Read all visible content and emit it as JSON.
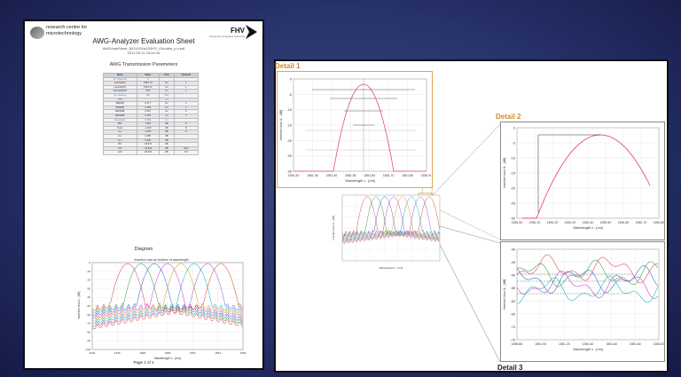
{
  "sheet": {
    "logo_line1": "research centre for",
    "logo_line2": "microtechnology",
    "fhv_logo": "FHV",
    "fhv_sub": "University of Applied Sciences",
    "title": "AWG-Analyzer Evaluation Sheet",
    "subtitle1": "AWGAnalSheet_80110GHz100HS_Gdouble_p-v.pdf",
    "subtitle2": "2011-09-11 15:44:16",
    "params_title": "AWG Transmission Parameters",
    "headers": [
      "Name",
      "Value",
      "Unit",
      "Channel"
    ],
    "rows": [
      [
        "Nr. Channels",
        "8",
        "",
        ""
      ],
      [
        "LambdaCh",
        "1551.70",
        "nm",
        "1"
      ],
      [
        "LambdaITU",
        "1551.72",
        "nm",
        "1"
      ],
      [
        "ΔLambdaITU",
        "0.05",
        "nm",
        "1"
      ],
      [
        "Ch. Spacing",
        "100",
        "GHz",
        ""
      ],
      [
        "FSR",
        "",
        "nm",
        ""
      ],
      [
        "BW1dB",
        "0.177",
        "nm",
        "4"
      ],
      [
        "BW3dB",
        "0.193",
        "nm",
        "1"
      ],
      [
        "BW20dB",
        "0.267",
        "nm",
        "3"
      ],
      [
        "BW30dB",
        "0.763",
        "nm",
        "3"
      ],
      [
        "Resolution",
        "0.006",
        "nm",
        ""
      ],
      [
        "PDL",
        "1.094",
        "dB",
        "8"
      ],
      [
        "ILmin",
        "-1.220",
        "dB",
        "8"
      ],
      [
        "ILu",
        "-3.824",
        "dB",
        "8"
      ],
      [
        "ILx",
        "0.486",
        "dB",
        "-"
      ],
      [
        "IL-u",
        "0.026",
        "dB",
        "-"
      ],
      [
        "BX",
        "-34.671",
        "dB",
        "-"
      ],
      [
        "NX",
        "-32.824",
        "dB",
        "NxN"
      ],
      [
        "nAX",
        "-36.612",
        "dB",
        "Tot"
      ]
    ],
    "highlight_rows": [
      0,
      4,
      5,
      10
    ],
    "diagram_title": "Diagram",
    "chart_title": "Insertion loss as function of wavelength",
    "chart_xlabel": "Wavelength λ - [nm]",
    "chart_ylabel": "Insertion loss IL - [dB]",
    "chart_yticks": [
      "0",
      "-10",
      "-20",
      "-30",
      "-40",
      "-50",
      "-60",
      "-70",
      "-80",
      "-90",
      "-100"
    ],
    "chart_xticks": [
      "1544",
      "1546",
      "1548",
      "1550",
      "1552",
      "1554",
      "1556"
    ],
    "page_label": "Page 1 of 1"
  },
  "panel": {
    "detail1_label": "Detail 1",
    "detail2_label": "Detail 2",
    "detail3_label": "Detail 3",
    "detail1": {
      "xticks": [
        "1551.20",
        "1551.30",
        "1551.40",
        "1551.50",
        "1551.60",
        "1551.70",
        "1551.80",
        "1551.90"
      ],
      "yticks": [
        "0",
        "-5",
        "-10",
        "-15",
        "-20",
        "-25",
        "-30"
      ],
      "xlabel": "Wavelength λ - [nm]",
      "ylabel": "Insertion loss IL - [dB]"
    },
    "detail2": {
      "xticks": [
        "1551.00",
        "1551.10",
        "1551.20",
        "1551.30",
        "1551.40",
        "1551.50",
        "1551.60",
        "1551.70",
        "1551.80"
      ],
      "yticks": [
        "0",
        "-5",
        "-10",
        "-15",
        "-20",
        "-25",
        "-30"
      ],
      "xlabel": "Wavelength λ - [nm]",
      "ylabel": "Insertion loss IL - [dB]"
    },
    "detail3": {
      "xticks": [
        "1550.80",
        "1551.00",
        "1551.20",
        "1551.40",
        "1551.60",
        "1551.80",
        "1552.00"
      ],
      "yticks": [
        "-40",
        "-45",
        "-50",
        "-55",
        "-60",
        "-65",
        "-70",
        "-75"
      ],
      "xlabel": "Wavelength λ - [nm]",
      "ylabel": "Insertion loss IL - [dB]"
    },
    "main": {
      "xlabel": "Wavelength λ - [nm]",
      "ylabel": "Insertion loss IL - [dB]"
    }
  },
  "colors": {
    "detail_label": "#d08a2a",
    "peak_curve": "#e8506a",
    "background": "#27316a"
  }
}
